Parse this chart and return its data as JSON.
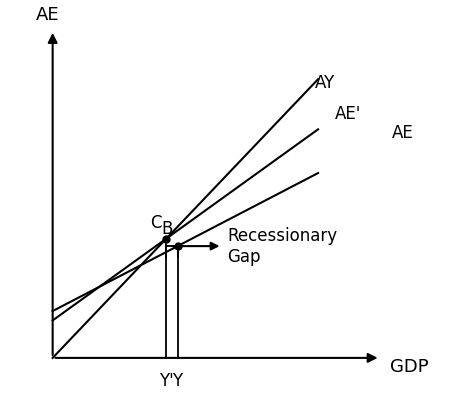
{
  "xlabel": "GDP",
  "ylabel": "AE",
  "xlim": [
    0,
    10
  ],
  "ylim": [
    0,
    10
  ],
  "AY_slope": 1.05,
  "AY_intercept": 0.0,
  "AEprime_slope": 0.72,
  "AEprime_intercept": 1.2,
  "AE_slope": 0.52,
  "AE_intercept": 1.5,
  "x_Y": 4.0,
  "label_AY": "AY",
  "label_AEprime": "AE'",
  "label_AE": "AE",
  "label_B": "B",
  "label_C": "C",
  "label_Y": "Y",
  "label_Yprime": "Y'",
  "label_recessionary": "Recessionary\nGap",
  "line_color": "#000000",
  "bg_color": "#ffffff",
  "fontsize_labels": 12,
  "fontsize_axis_labels": 13,
  "fontsize_points": 12
}
